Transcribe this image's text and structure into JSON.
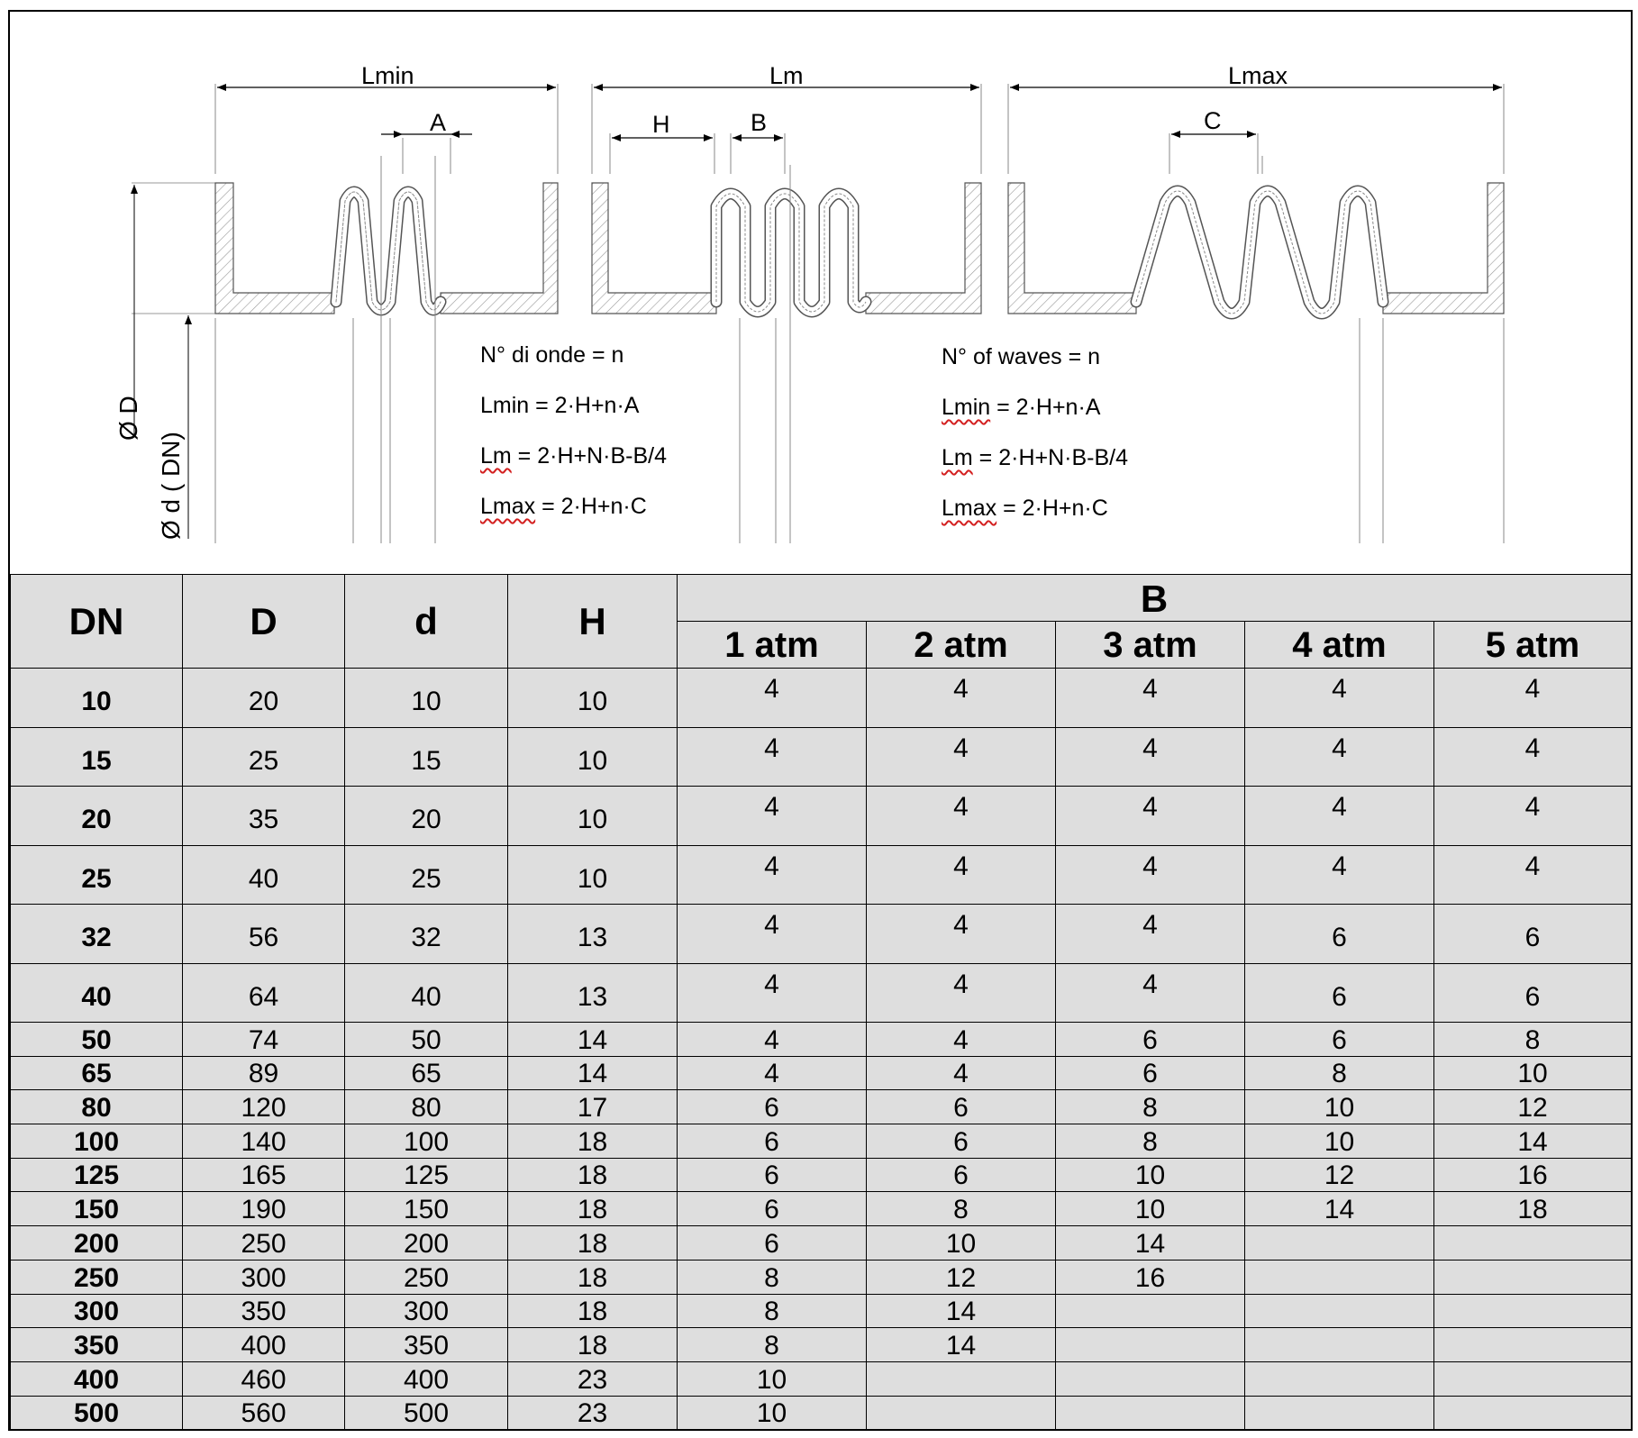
{
  "diagram": {
    "dimensions": {
      "lmin": "Lmin",
      "lm": "Lm",
      "lmax": "Lmax",
      "a": "A",
      "h": "H",
      "b": "B",
      "c": "C",
      "outer_diameter": "Ø D",
      "inner_diameter": "Ø d ( DN)"
    },
    "formulas_it": {
      "waves": "N° di onde = n",
      "lmin_name": "Lmin",
      "lmin_expr": " = 2·H+n·A",
      "lm_name": "Lm",
      "lm_expr": " = 2·H+N·B-B/4",
      "lmax_name": "Lmax",
      "lmax_expr": " = 2·H+n·C"
    },
    "formulas_en": {
      "waves": "N° of waves = n",
      "lmin_name": "Lmin",
      "lmin_expr": " = 2·H+n·A",
      "lm_name": "Lm",
      "lm_expr": " = 2·H+N·B-B/4",
      "lmax_name": "Lmax",
      "lmax_expr": " = 2·H+n·C"
    }
  },
  "table": {
    "headers": {
      "dn": "DN",
      "d_outer": "D",
      "d_inner": "d",
      "h": "H",
      "b_group": "B",
      "atm": [
        "1 atm",
        "2 atm",
        "3 atm",
        "4 atm",
        "5 atm"
      ]
    },
    "rows": [
      {
        "dn": "10",
        "D": "20",
        "d": "10",
        "H": "10",
        "b": [
          "4",
          "4",
          "4",
          "4",
          "4"
        ]
      },
      {
        "dn": "15",
        "D": "25",
        "d": "15",
        "H": "10",
        "b": [
          "4",
          "4",
          "4",
          "4",
          "4"
        ]
      },
      {
        "dn": "20",
        "D": "35",
        "d": "20",
        "H": "10",
        "b": [
          "4",
          "4",
          "4",
          "4",
          "4"
        ]
      },
      {
        "dn": "25",
        "D": "40",
        "d": "25",
        "H": "10",
        "b": [
          "4",
          "4",
          "4",
          "4",
          "4"
        ]
      },
      {
        "dn": "32",
        "D": "56",
        "d": "32",
        "H": "13",
        "b": [
          "4",
          "4",
          "4",
          "6",
          "6"
        ]
      },
      {
        "dn": "40",
        "D": "64",
        "d": "40",
        "H": "13",
        "b": [
          "4",
          "4",
          "4",
          "6",
          "6"
        ]
      },
      {
        "dn": "50",
        "D": "74",
        "d": "50",
        "H": "14",
        "b": [
          "4",
          "4",
          "6",
          "6",
          "8"
        ]
      },
      {
        "dn": "65",
        "D": "89",
        "d": "65",
        "H": "14",
        "b": [
          "4",
          "4",
          "6",
          "8",
          "10"
        ]
      },
      {
        "dn": "80",
        "D": "120",
        "d": "80",
        "H": "17",
        "b": [
          "6",
          "6",
          "8",
          "10",
          "12"
        ]
      },
      {
        "dn": "100",
        "D": "140",
        "d": "100",
        "H": "18",
        "b": [
          "6",
          "6",
          "8",
          "10",
          "14"
        ]
      },
      {
        "dn": "125",
        "D": "165",
        "d": "125",
        "H": "18",
        "b": [
          "6",
          "6",
          "10",
          "12",
          "16"
        ]
      },
      {
        "dn": "150",
        "D": "190",
        "d": "150",
        "H": "18",
        "b": [
          "6",
          "8",
          "10",
          "14",
          "18"
        ]
      },
      {
        "dn": "200",
        "D": "250",
        "d": "200",
        "H": "18",
        "b": [
          "6",
          "10",
          "14",
          "",
          ""
        ]
      },
      {
        "dn": "250",
        "D": "300",
        "d": "250",
        "H": "18",
        "b": [
          "8",
          "12",
          "16",
          "",
          ""
        ]
      },
      {
        "dn": "300",
        "D": "350",
        "d": "300",
        "H": "18",
        "b": [
          "8",
          "14",
          "",
          "",
          ""
        ]
      },
      {
        "dn": "350",
        "D": "400",
        "d": "350",
        "H": "18",
        "b": [
          "8",
          "14",
          "",
          "",
          ""
        ]
      },
      {
        "dn": "400",
        "D": "460",
        "d": "400",
        "H": "23",
        "b": [
          "10",
          "",
          "",
          "",
          ""
        ]
      },
      {
        "dn": "500",
        "D": "560",
        "d": "500",
        "H": "23",
        "b": [
          "10",
          "",
          "",
          "",
          ""
        ]
      }
    ]
  }
}
